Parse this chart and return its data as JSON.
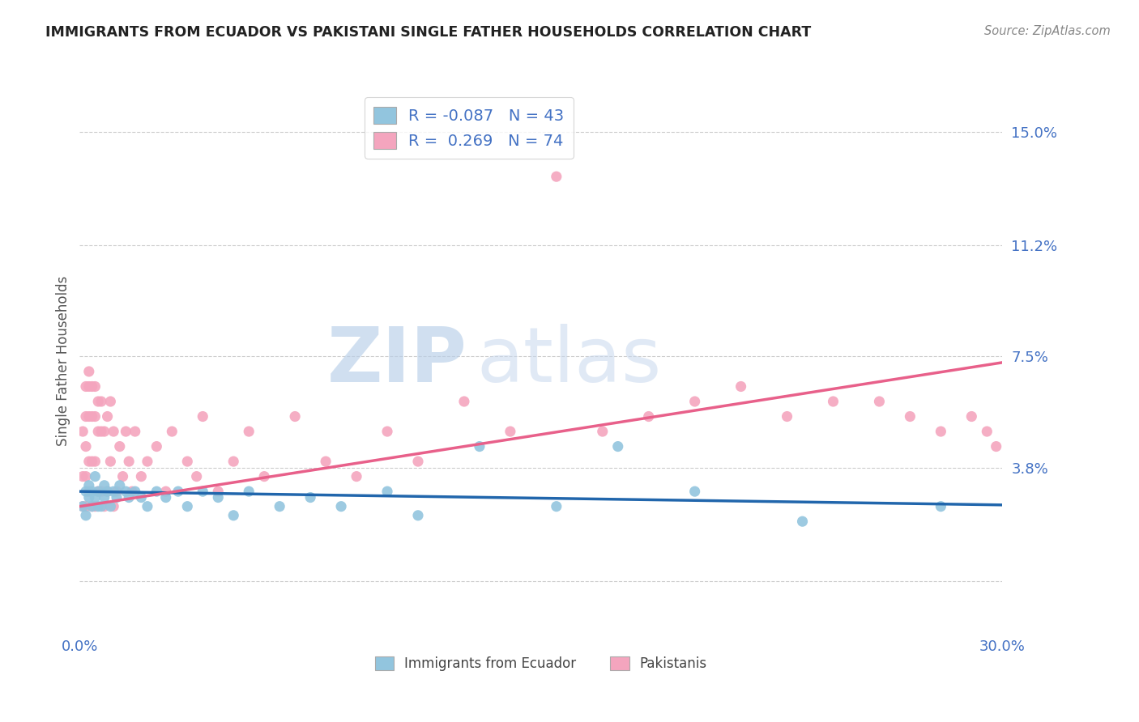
{
  "title": "IMMIGRANTS FROM ECUADOR VS PAKISTANI SINGLE FATHER HOUSEHOLDS CORRELATION CHART",
  "source": "Source: ZipAtlas.com",
  "ylabel": "Single Father Households",
  "legend_label1": "Immigrants from Ecuador",
  "legend_label2": "Pakistanis",
  "r1": -0.087,
  "n1": 43,
  "r2": 0.269,
  "n2": 74,
  "xmin": 0.0,
  "xmax": 0.3,
  "ymin": -0.018,
  "ymax": 0.165,
  "yticks": [
    0.0,
    0.038,
    0.075,
    0.112,
    0.15
  ],
  "ytick_labels": [
    "",
    "3.8%",
    "7.5%",
    "11.2%",
    "15.0%"
  ],
  "xticks": [
    0.0,
    0.05,
    0.1,
    0.15,
    0.2,
    0.25,
    0.3
  ],
  "xtick_labels": [
    "0.0%",
    "",
    "",
    "",
    "",
    "",
    "30.0%"
  ],
  "color_blue": "#92c5de",
  "color_pink": "#f4a5be",
  "color_line_blue": "#2166ac",
  "color_line_pink": "#e8608a",
  "color_line_pink_dash": "#e8a0bc",
  "watermark_zip": "ZIP",
  "watermark_atlas": "atlas",
  "background": "#ffffff",
  "ecuador_x": [
    0.001,
    0.002,
    0.002,
    0.003,
    0.003,
    0.004,
    0.004,
    0.005,
    0.005,
    0.006,
    0.006,
    0.007,
    0.008,
    0.008,
    0.009,
    0.01,
    0.011,
    0.012,
    0.013,
    0.015,
    0.016,
    0.018,
    0.02,
    0.022,
    0.025,
    0.028,
    0.032,
    0.035,
    0.04,
    0.045,
    0.05,
    0.055,
    0.065,
    0.075,
    0.085,
    0.1,
    0.11,
    0.13,
    0.155,
    0.175,
    0.2,
    0.235,
    0.28
  ],
  "ecuador_y": [
    0.025,
    0.03,
    0.022,
    0.028,
    0.032,
    0.025,
    0.03,
    0.028,
    0.035,
    0.025,
    0.03,
    0.025,
    0.032,
    0.028,
    0.03,
    0.025,
    0.03,
    0.028,
    0.032,
    0.03,
    0.028,
    0.03,
    0.028,
    0.025,
    0.03,
    0.028,
    0.03,
    0.025,
    0.03,
    0.028,
    0.022,
    0.03,
    0.025,
    0.028,
    0.025,
    0.03,
    0.022,
    0.045,
    0.025,
    0.045,
    0.03,
    0.02,
    0.025
  ],
  "pakistan_x": [
    0.001,
    0.001,
    0.001,
    0.002,
    0.002,
    0.002,
    0.002,
    0.002,
    0.003,
    0.003,
    0.003,
    0.003,
    0.003,
    0.004,
    0.004,
    0.004,
    0.004,
    0.005,
    0.005,
    0.005,
    0.005,
    0.006,
    0.006,
    0.006,
    0.007,
    0.007,
    0.007,
    0.008,
    0.008,
    0.009,
    0.009,
    0.01,
    0.01,
    0.011,
    0.011,
    0.012,
    0.013,
    0.014,
    0.015,
    0.016,
    0.017,
    0.018,
    0.02,
    0.022,
    0.025,
    0.028,
    0.03,
    0.035,
    0.038,
    0.04,
    0.045,
    0.05,
    0.055,
    0.06,
    0.07,
    0.08,
    0.09,
    0.1,
    0.11,
    0.125,
    0.14,
    0.155,
    0.17,
    0.185,
    0.2,
    0.215,
    0.23,
    0.245,
    0.26,
    0.27,
    0.28,
    0.29,
    0.295,
    0.298
  ],
  "pakistan_y": [
    0.025,
    0.035,
    0.05,
    0.025,
    0.035,
    0.045,
    0.055,
    0.065,
    0.03,
    0.04,
    0.055,
    0.065,
    0.07,
    0.025,
    0.04,
    0.055,
    0.065,
    0.025,
    0.04,
    0.055,
    0.065,
    0.03,
    0.05,
    0.06,
    0.03,
    0.05,
    0.06,
    0.025,
    0.05,
    0.03,
    0.055,
    0.04,
    0.06,
    0.025,
    0.05,
    0.03,
    0.045,
    0.035,
    0.05,
    0.04,
    0.03,
    0.05,
    0.035,
    0.04,
    0.045,
    0.03,
    0.05,
    0.04,
    0.035,
    0.055,
    0.03,
    0.04,
    0.05,
    0.035,
    0.055,
    0.04,
    0.035,
    0.05,
    0.04,
    0.06,
    0.05,
    0.135,
    0.05,
    0.055,
    0.06,
    0.065,
    0.055,
    0.06,
    0.06,
    0.055,
    0.05,
    0.055,
    0.05,
    0.045
  ]
}
